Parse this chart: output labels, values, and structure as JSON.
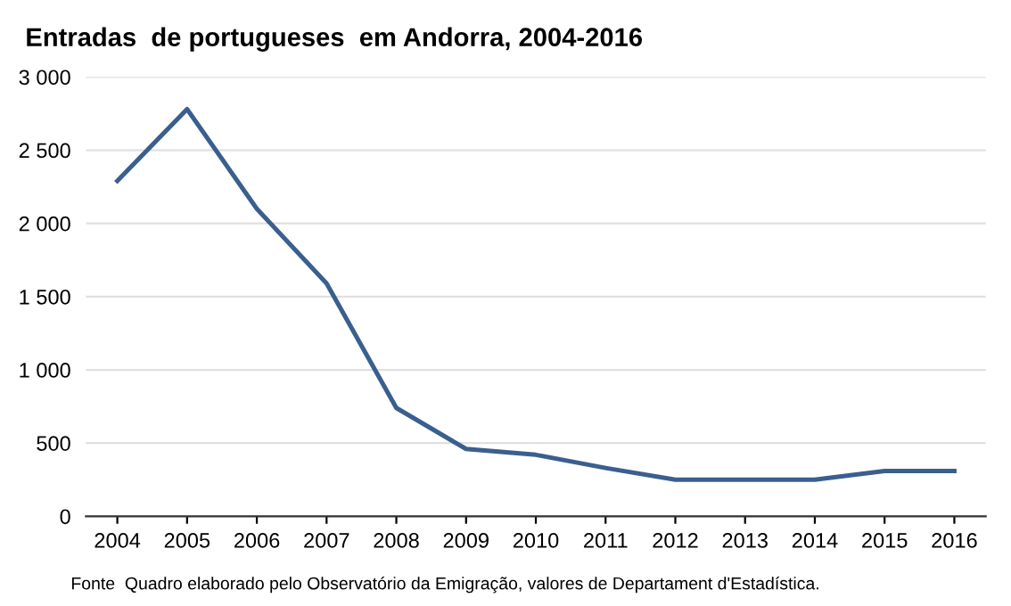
{
  "chart_data": {
    "type": "line",
    "title": "Entradas  de portugueses  em Andorra, 2004-2016",
    "categories": [
      "2004",
      "2005",
      "2006",
      "2007",
      "2008",
      "2009",
      "2010",
      "2011",
      "2012",
      "2013",
      "2014",
      "2015",
      "2016"
    ],
    "series": [
      {
        "color": "#3a5f8f",
        "values": [
          2290,
          2780,
          2100,
          1590,
          740,
          460,
          420,
          330,
          250,
          250,
          250,
          310,
          310
        ]
      }
    ],
    "ylim": [
      0,
      3000
    ],
    "yticks": [
      0,
      500,
      {
        "value": 1000,
        "label": "1 000"
      },
      {
        "value": 1500,
        "label": "1 500"
      },
      {
        "value": 2000,
        "label": "2 000"
      },
      {
        "value": 2500,
        "label": "2 500"
      },
      {
        "value": 3000,
        "label": "3 000"
      }
    ],
    "grid": "y",
    "legend": false,
    "marker": "none",
    "line_style": "solid",
    "annotations": [
      "Fonte  Quadro elaborado pelo Observatório da Emigração, valores de Departament d'Estadística."
    ]
  }
}
